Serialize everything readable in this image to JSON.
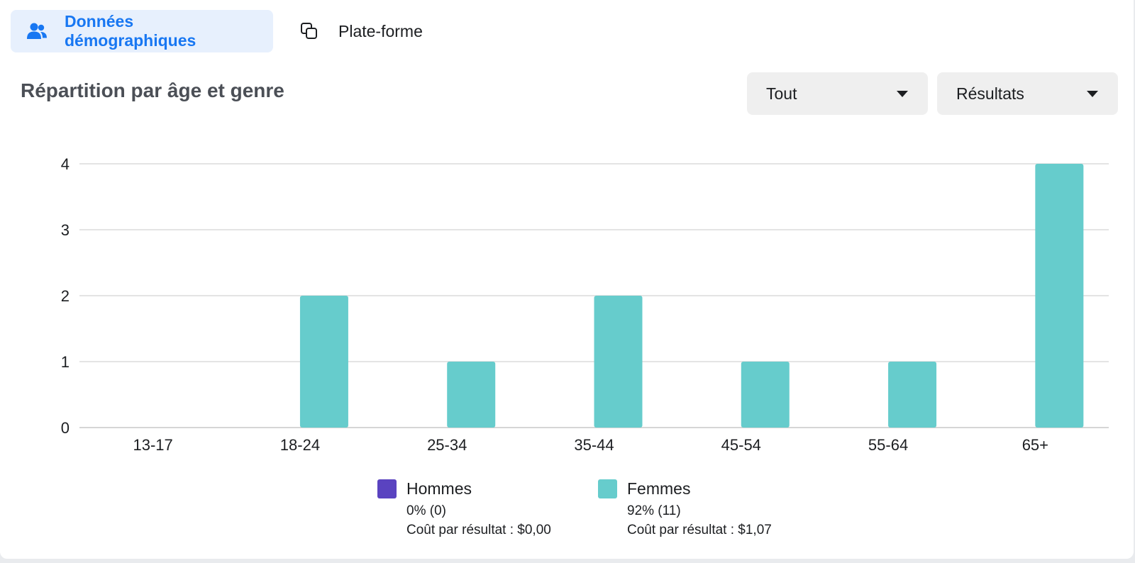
{
  "tabs": [
    {
      "label": "Données démographiques",
      "icon": "people-icon",
      "active": true
    },
    {
      "label": "Plate-forme",
      "icon": "platform-squares-icon",
      "active": false
    }
  ],
  "section": {
    "title": "Répartition par âge et genre"
  },
  "filters": {
    "audience": "Tout",
    "metric": "Résultats"
  },
  "colors": {
    "accent": "#1877f2",
    "men": "#5a43c0",
    "women": "#66cccc",
    "tab_active_bg": "#e7f0fd"
  },
  "legend": [
    {
      "name": "Hommes",
      "share": "0% (0)",
      "cost": "Coût par résultat : $0,00"
    },
    {
      "name": "Femmes",
      "share": "92% (11)",
      "cost": "Coût par résultat : $1,07"
    }
  ],
  "chart_data": {
    "type": "bar",
    "title": "Répartition par âge et genre",
    "categories": [
      "13-17",
      "18-24",
      "25-34",
      "35-44",
      "45-54",
      "55-64",
      "65+"
    ],
    "series": [
      {
        "name": "Hommes",
        "values": [
          0,
          0,
          0,
          0,
          0,
          0,
          0
        ]
      },
      {
        "name": "Femmes",
        "values": [
          0,
          2,
          1,
          2,
          1,
          1,
          4
        ]
      }
    ],
    "yticks": [
      0,
      1,
      2,
      3,
      4
    ],
    "ylim": [
      0,
      4
    ],
    "grid": true,
    "legend_position": "bottom"
  }
}
